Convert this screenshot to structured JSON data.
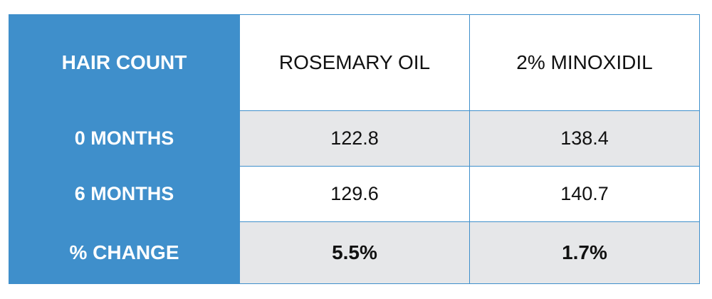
{
  "table": {
    "header": [
      "HAIR COUNT",
      "ROSEMARY OIL",
      "2% MINOXIDIL"
    ],
    "rows": [
      [
        "0 MONTHS",
        "122.8",
        "138.4"
      ],
      [
        "6 MONTHS",
        "129.6",
        "140.7"
      ],
      [
        "% CHANGE",
        "5.5%",
        "1.7%"
      ]
    ]
  }
}
